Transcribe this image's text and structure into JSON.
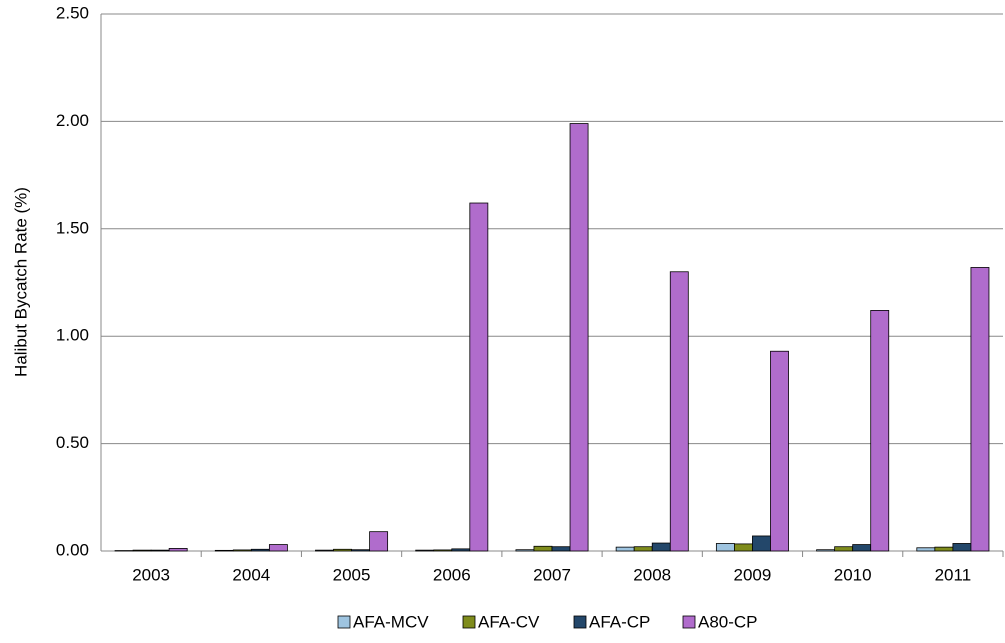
{
  "chart_data": {
    "type": "bar",
    "y_label": "Halibut Bycatch Rate (%)",
    "categories": [
      "2003",
      "2004",
      "2005",
      "2006",
      "2007",
      "2008",
      "2009",
      "2010",
      "2011"
    ],
    "series": [
      {
        "name": "AFA-MCV",
        "color": "#9ec4e0",
        "values": [
          0.002,
          0.003,
          0.004,
          0.004,
          0.006,
          0.018,
          0.035,
          0.006,
          0.015
        ]
      },
      {
        "name": "AFA-CV",
        "color": "#7f8c1c",
        "values": [
          0.004,
          0.005,
          0.008,
          0.005,
          0.022,
          0.02,
          0.033,
          0.02,
          0.018
        ]
      },
      {
        "name": "AFA-CP",
        "color": "#23476a",
        "values": [
          0.004,
          0.008,
          0.006,
          0.01,
          0.02,
          0.037,
          0.07,
          0.03,
          0.035
        ]
      },
      {
        "name": "A80-CP",
        "color": "#b06ccc",
        "values": [
          0.012,
          0.03,
          0.09,
          1.62,
          1.99,
          1.3,
          0.93,
          1.12,
          1.32
        ]
      }
    ],
    "ylim": [
      0,
      2.5
    ],
    "yticks": [
      {
        "value": 0,
        "label": "0.00"
      },
      {
        "value": 0.5,
        "label": "0.50"
      },
      {
        "value": 1,
        "label": "1.00"
      },
      {
        "value": 1.5,
        "label": "1.50"
      },
      {
        "value": 2,
        "label": "2.00"
      },
      {
        "value": 2.5,
        "label": "2.50"
      }
    ],
    "grid": true,
    "legend": "bottom"
  }
}
